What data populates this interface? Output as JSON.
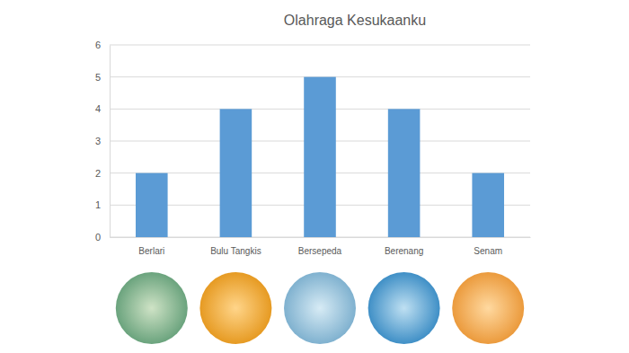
{
  "chart_data": {
    "type": "bar",
    "title": "Olahraga Kesukaanku",
    "categories": [
      "Berlari",
      "Bulu Tangkis",
      "Bersepeda",
      "Berenang",
      "Senam"
    ],
    "values": [
      2,
      4,
      5,
      4,
      2
    ],
    "color": "#5b9bd5",
    "ylim": [
      0,
      6
    ],
    "yticks": [
      0,
      1,
      2,
      3,
      4,
      5,
      6
    ],
    "grid": true
  }
}
